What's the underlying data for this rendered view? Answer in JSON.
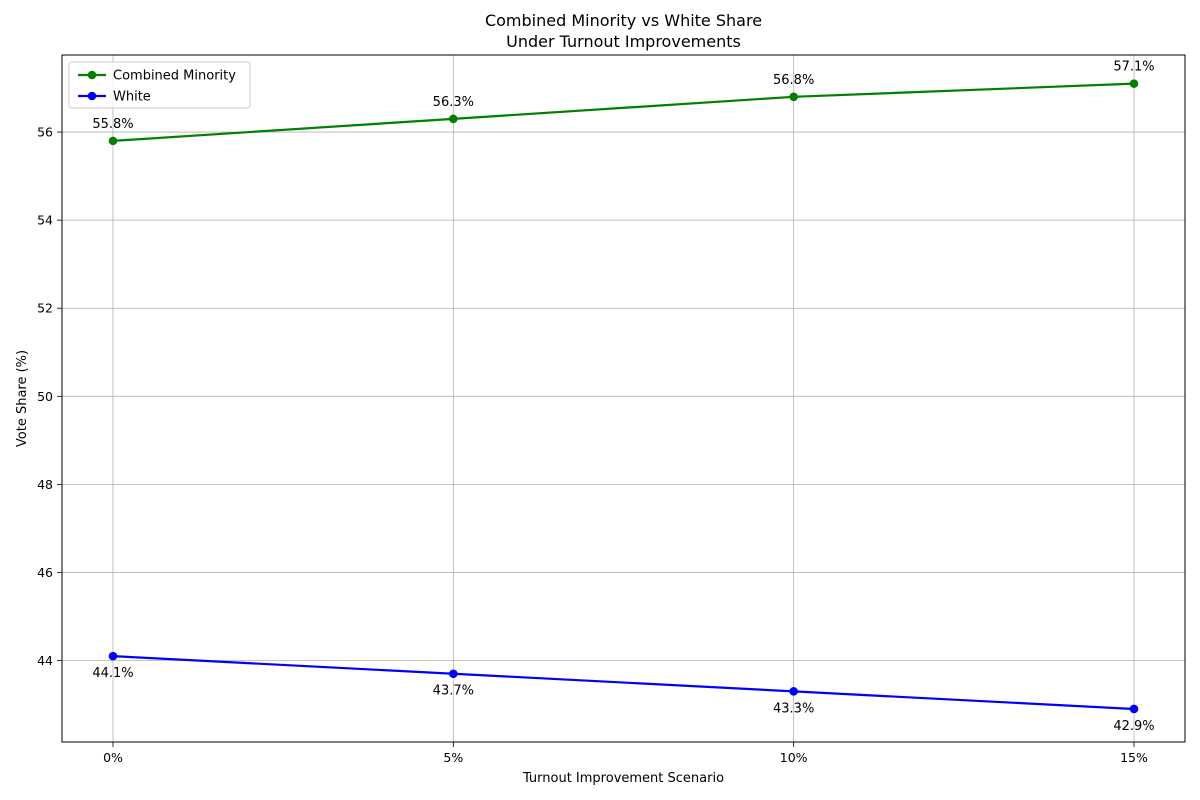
{
  "chart_data": {
    "type": "line",
    "title_lines": [
      "Combined Minority vs White Share",
      "Under Turnout Improvements"
    ],
    "xlabel": "Turnout Improvement Scenario",
    "ylabel": "Vote Share (%)",
    "categories": [
      "0%",
      "5%",
      "10%",
      "15%"
    ],
    "ylim": [
      42.15,
      57.75
    ],
    "yticks": [
      44,
      46,
      48,
      50,
      52,
      54,
      56
    ],
    "grid": true,
    "legend_position": "upper-left",
    "series": [
      {
        "name": "Combined Minority",
        "color": "#008000",
        "values": [
          55.8,
          56.3,
          56.8,
          57.1
        ],
        "labels": [
          "55.8%",
          "56.3%",
          "56.8%",
          "57.1%"
        ],
        "label_position": "above"
      },
      {
        "name": "White",
        "color": "#0000ff",
        "values": [
          44.1,
          43.7,
          43.3,
          42.9
        ],
        "labels": [
          "44.1%",
          "43.7%",
          "43.3%",
          "42.9%"
        ],
        "label_position": "below"
      }
    ]
  }
}
